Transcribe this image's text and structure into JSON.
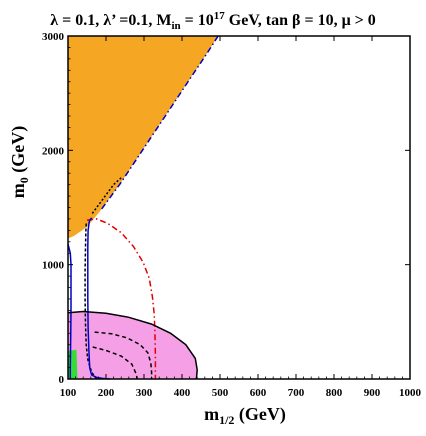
{
  "chart_data": {
    "type": "contour",
    "title": {
      "lambda": "λ = 0.1, λ’ =0.1, M",
      "min_sub": "in",
      "eq": " = 10",
      "sup": "17",
      "rest": " GeV, tan β = 10,  μ > 0"
    },
    "xlabel": {
      "main": "m",
      "sub": "1/2",
      "unit": " (GeV)"
    },
    "ylabel": {
      "main": "m",
      "sub": "0",
      "unit": " (GeV)"
    },
    "xlim": [
      100,
      1000
    ],
    "ylim": [
      0,
      3000
    ],
    "x_ticks": [
      "100",
      "200",
      "300",
      "400",
      "500",
      "600",
      "700",
      "800",
      "900",
      "1000"
    ],
    "y_ticks": [
      "0",
      "1000",
      "2000",
      "3000"
    ],
    "x_tick_values": [
      100,
      200,
      300,
      400,
      500,
      600,
      700,
      800,
      900,
      1000
    ],
    "y_tick_values": [
      0,
      1000,
      2000,
      3000
    ],
    "regions": [
      {
        "name": "excluded-orange",
        "color": "#f5a623",
        "points": [
          [
            100,
            3000
          ],
          [
            495,
            3000
          ],
          [
            470,
            2870
          ],
          [
            420,
            2620
          ],
          [
            360,
            2320
          ],
          [
            300,
            2020
          ],
          [
            240,
            1720
          ],
          [
            185,
            1470
          ],
          [
            150,
            1330
          ],
          [
            115,
            1250
          ],
          [
            100,
            1230
          ]
        ]
      },
      {
        "name": "pink-region",
        "color": "#f5a0e6",
        "points": [
          [
            100,
            580
          ],
          [
            140,
            590
          ],
          [
            200,
            575
          ],
          [
            260,
            540
          ],
          [
            320,
            480
          ],
          [
            370,
            400
          ],
          [
            410,
            300
          ],
          [
            435,
            180
          ],
          [
            440,
            80
          ],
          [
            438,
            0
          ],
          [
            100,
            0
          ]
        ]
      },
      {
        "name": "green-region",
        "color": "#33dd33",
        "points": [
          [
            100,
            0
          ],
          [
            100,
            245
          ],
          [
            122,
            255
          ],
          [
            125,
            0
          ]
        ]
      }
    ],
    "lines": [
      {
        "name": "red-dashdot-contour",
        "color": "#e00000",
        "dash": "6,3,1.5,3",
        "points": [
          [
            150,
            1390
          ],
          [
            175,
            1400
          ],
          [
            205,
            1360
          ],
          [
            240,
            1280
          ],
          [
            272,
            1160
          ],
          [
            298,
            1020
          ],
          [
            314,
            880
          ],
          [
            322,
            720
          ],
          [
            327,
            560
          ],
          [
            329,
            380
          ],
          [
            330,
            200
          ],
          [
            330,
            0
          ]
        ]
      },
      {
        "name": "black-dashed-contour",
        "color": "#000000",
        "dash": "3,2",
        "points": [
          [
            148,
            1360
          ],
          [
            147,
            1300
          ],
          [
            146,
            1150
          ],
          [
            145,
            950
          ],
          [
            145,
            700
          ],
          [
            146,
            480
          ],
          [
            148,
            300
          ],
          [
            152,
            170
          ],
          [
            162,
            60
          ],
          [
            175,
            0
          ]
        ]
      },
      {
        "name": "blue-contour",
        "color": "#0000cc",
        "dash": "",
        "points": [
          [
            162,
            1410
          ],
          [
            156,
            1380
          ],
          [
            153,
            1300
          ],
          [
            152,
            1150
          ],
          [
            152,
            950
          ],
          [
            152,
            700
          ],
          [
            153,
            450
          ],
          [
            155,
            250
          ],
          [
            157,
            100
          ],
          [
            162,
            35
          ],
          [
            175,
            15
          ],
          [
            190,
            5
          ],
          [
            210,
            0
          ]
        ]
      },
      {
        "name": "blue-left-contour",
        "color": "#0000cc",
        "dash": "",
        "points": [
          [
            100,
            1180
          ],
          [
            106,
            1100
          ],
          [
            108,
            1000
          ],
          [
            108,
            800
          ],
          [
            108,
            600
          ],
          [
            107,
            350
          ],
          [
            106,
            100
          ],
          [
            106,
            0
          ]
        ]
      },
      {
        "name": "inner-dashed-1",
        "color": "#000000",
        "dash": "4,3",
        "points": [
          [
            170,
            410
          ],
          [
            215,
            395
          ],
          [
            255,
            360
          ],
          [
            290,
            300
          ],
          [
            310,
            230
          ],
          [
            318,
            140
          ],
          [
            320,
            60
          ],
          [
            320,
            0
          ]
        ]
      },
      {
        "name": "inner-dashed-2",
        "color": "#000000",
        "dash": "4,3",
        "points": [
          [
            165,
            280
          ],
          [
            200,
            250
          ],
          [
            240,
            200
          ],
          [
            268,
            130
          ],
          [
            280,
            40
          ],
          [
            282,
            0
          ]
        ]
      },
      {
        "name": "blue-boundary-edge",
        "color": "#0000cc",
        "dash": "6,3,1.5,3",
        "points": [
          [
            495,
            3000
          ],
          [
            470,
            2870
          ],
          [
            420,
            2620
          ],
          [
            360,
            2320
          ],
          [
            300,
            2020
          ],
          [
            240,
            1720
          ],
          [
            185,
            1470
          ]
        ]
      },
      {
        "name": "black-boundary-edge",
        "color": "#000000",
        "dash": "2,2",
        "points": [
          [
            240,
            1760
          ],
          [
            220,
            1700
          ],
          [
            200,
            1610
          ],
          [
            180,
            1520
          ],
          [
            162,
            1440
          ]
        ]
      },
      {
        "name": "pink-outline",
        "color": "#000000",
        "dash": "",
        "points": [
          [
            100,
            580
          ],
          [
            140,
            590
          ],
          [
            200,
            575
          ],
          [
            260,
            540
          ],
          [
            320,
            480
          ],
          [
            370,
            400
          ],
          [
            410,
            300
          ],
          [
            435,
            180
          ],
          [
            440,
            80
          ],
          [
            438,
            0
          ]
        ]
      }
    ]
  }
}
